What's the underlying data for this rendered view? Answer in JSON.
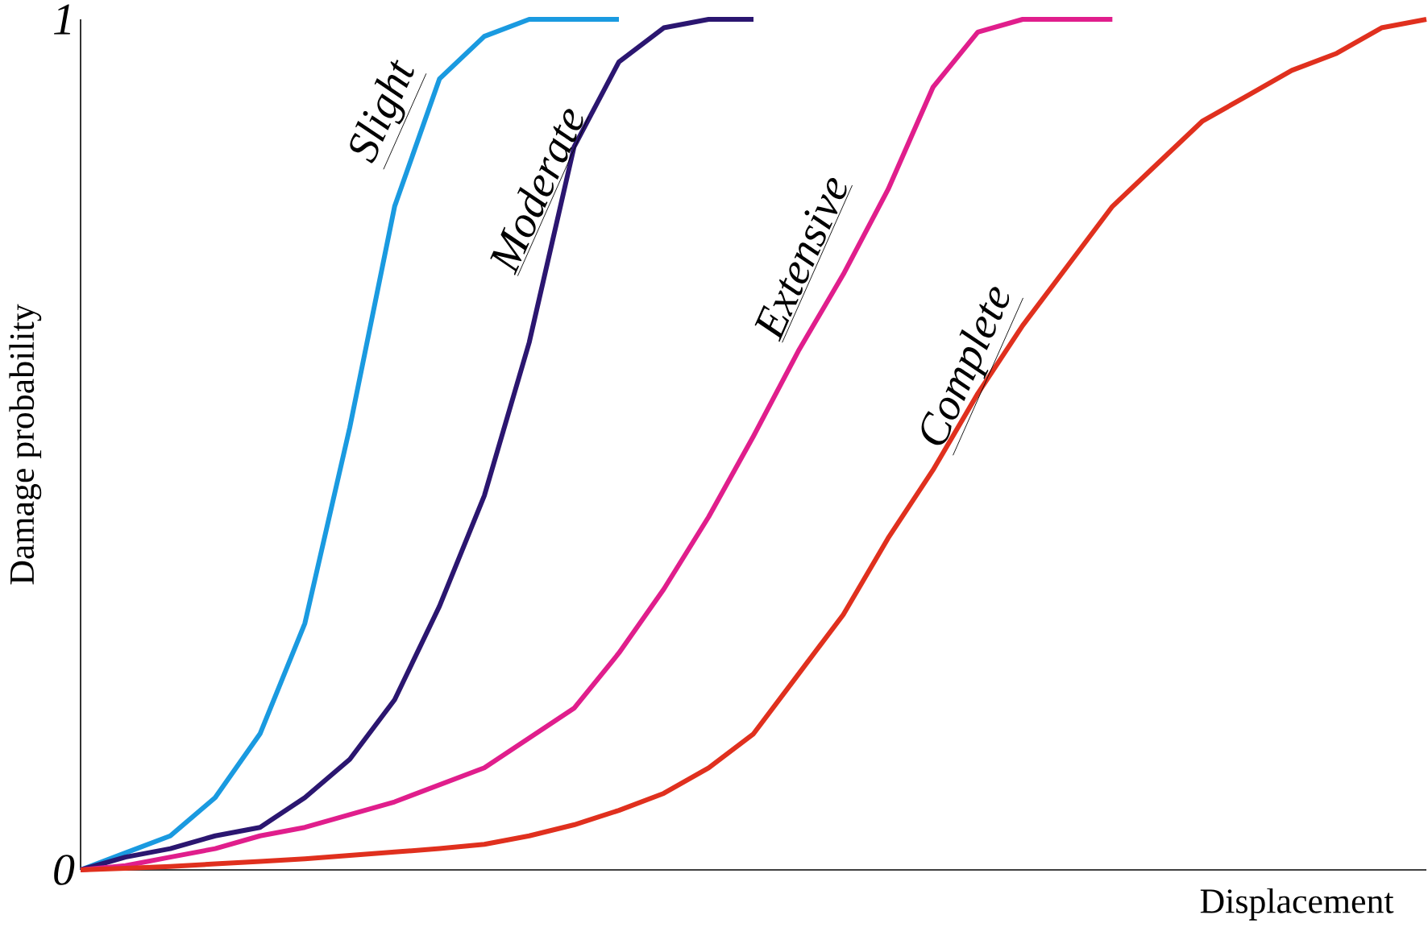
{
  "chart_data": {
    "type": "line",
    "xlabel": "Displacement",
    "ylabel": "Damage probability",
    "categories": [
      null,
      null,
      null,
      null,
      null,
      null,
      null,
      null,
      null,
      null,
      null,
      null,
      null,
      null,
      null,
      null,
      null,
      null,
      null,
      null,
      null,
      null,
      null,
      null,
      null,
      null,
      null,
      null,
      null,
      null,
      null
    ],
    "ylim": [
      0,
      1
    ],
    "yticks": [
      0,
      1
    ],
    "legend": false,
    "grid": false,
    "series": [
      {
        "name": "Slight",
        "color": "#1a9ae0",
        "values": [
          0,
          0.02,
          0.04,
          0.085,
          0.16,
          0.29,
          0.52,
          0.78,
          0.93,
          0.98,
          1,
          1,
          1,
          null,
          null,
          null,
          null,
          null,
          null,
          null,
          null,
          null,
          null,
          null,
          null,
          null,
          null,
          null,
          null,
          null,
          null
        ]
      },
      {
        "name": "Moderate",
        "color": "#2b1670",
        "values": [
          0,
          0.015,
          0.025,
          0.04,
          0.05,
          0.085,
          0.13,
          0.2,
          0.31,
          0.44,
          0.62,
          0.85,
          0.95,
          0.99,
          1,
          1,
          null,
          null,
          null,
          null,
          null,
          null,
          null,
          null,
          null,
          null,
          null,
          null,
          null,
          null,
          null
        ]
      },
      {
        "name": "Extensive",
        "color": "#e01e8c",
        "values": [
          0,
          0.005,
          0.015,
          0.025,
          0.04,
          0.05,
          0.065,
          0.08,
          0.1,
          0.12,
          0.155,
          0.19,
          0.255,
          0.33,
          0.415,
          0.51,
          0.61,
          0.7,
          0.8,
          0.92,
          0.985,
          1,
          1,
          1,
          null,
          null,
          null,
          null,
          null,
          null,
          null
        ]
      },
      {
        "name": "Complete",
        "color": "#e0301e",
        "values": [
          0,
          0.002,
          0.004,
          0.007,
          0.01,
          0.013,
          0.017,
          0.021,
          0.025,
          0.03,
          0.04,
          0.053,
          0.07,
          0.09,
          0.12,
          0.16,
          0.23,
          0.3,
          0.39,
          0.47,
          0.56,
          0.64,
          0.71,
          0.78,
          0.83,
          0.88,
          0.91,
          0.94,
          0.96,
          0.99,
          1
        ]
      }
    ]
  }
}
